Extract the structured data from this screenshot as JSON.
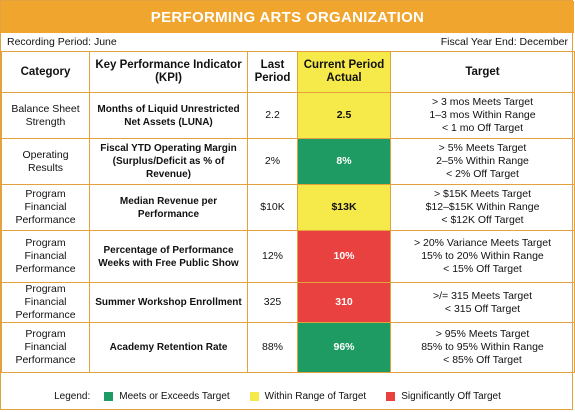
{
  "header": {
    "title": "PERFORMING ARTS ORGANIZATION",
    "recording_period": "Recording Period: June",
    "fiscal_year_end": "Fiscal Year End: December"
  },
  "columns": {
    "category": "Category",
    "kpi": "Key Performance Indicator (KPI)",
    "last_period": "Last Period",
    "current_actual": "Current Period Actual",
    "target": "Target"
  },
  "rows": [
    {
      "category": "Balance Sheet Strength",
      "kpi": "Months of Liquid Unrestricted Net Assets (LUNA)",
      "last": "2.2",
      "actual": "2.5",
      "status": "yellow",
      "targets": [
        "> 3 mos Meets Target",
        "1–3 mos Within Range",
        "< 1 mo Off Target"
      ]
    },
    {
      "category": "Operating Results",
      "kpi": "Fiscal YTD Operating Margin (Surplus/Deficit as % of Revenue)",
      "last": "2%",
      "actual": "8%",
      "status": "green",
      "targets": [
        "> 5% Meets Target",
        "2–5% Within Range",
        "< 2% Off Target"
      ]
    },
    {
      "category": "Program Financial Performance",
      "kpi": "Median Revenue per Performance",
      "last": "$10K",
      "actual": "$13K",
      "status": "yellow",
      "targets": [
        "> $15K Meets Target",
        "$12–$15K Within Range",
        "< $12K Off Target"
      ]
    },
    {
      "category": "Program Financial Performance",
      "kpi": "Percentage of Performance Weeks with Free Public Show",
      "last": "12%",
      "actual": "10%",
      "status": "red",
      "targets": [
        "> 20% Variance Meets Target",
        "15% to 20% Within Range",
        "< 15% Off Target"
      ]
    },
    {
      "category": "Program Financial Performance",
      "kpi": "Summer Workshop Enrollment",
      "last": "325",
      "actual": "310",
      "status": "red",
      "targets": [
        ">/= 315 Meets Target",
        "< 315 Off Target"
      ]
    },
    {
      "category": "Program Financial Performance",
      "kpi": "Academy Retention Rate",
      "last": "88%",
      "actual": "96%",
      "status": "green",
      "targets": [
        "> 95% Meets Target",
        "85% to 95% Within Range",
        "< 85% Off Target"
      ]
    }
  ],
  "legend": {
    "label": "Legend:",
    "items": [
      {
        "text": "Meets or Exceeds Target",
        "color": "#1e9b62"
      },
      {
        "text": "Within Range of Target",
        "color": "#f6e94a"
      },
      {
        "text": "Significantly Off Target",
        "color": "#e94040"
      }
    ]
  },
  "colors": {
    "header_orange": "#f0a52e",
    "border_orange": "#e3a23b",
    "green": "#1e9b62",
    "yellow": "#f6e94a",
    "red": "#e94040"
  }
}
